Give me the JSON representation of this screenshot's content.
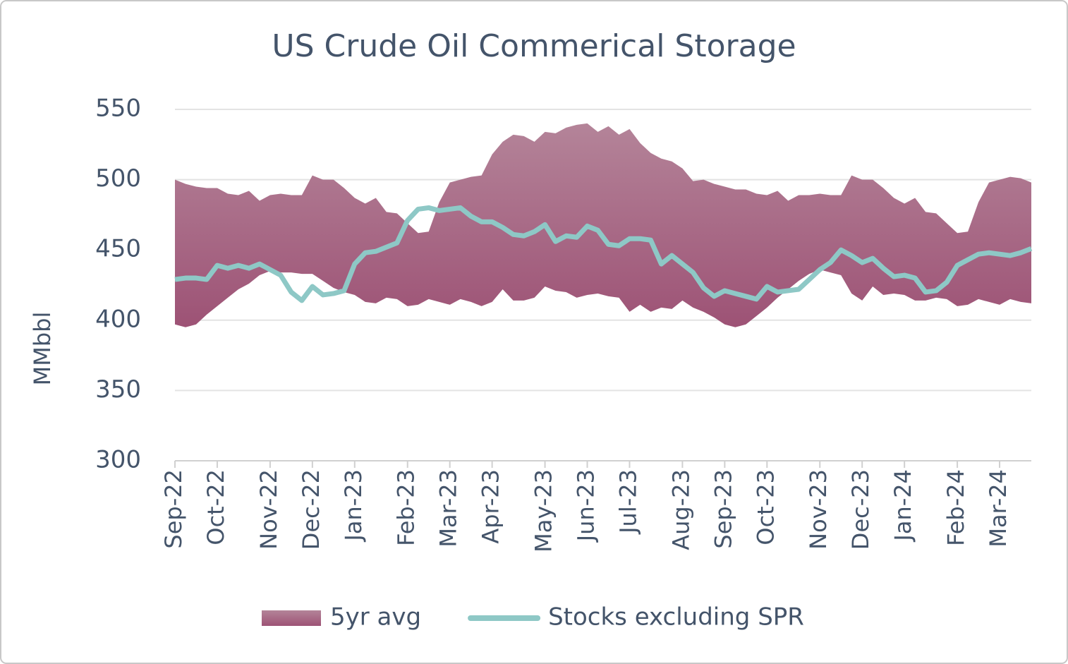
{
  "chart_data": {
    "type": "band_line",
    "title": "US Crude Oil Commerical Storage",
    "y_label": "MMbbl",
    "categories": [
      "Sep-22",
      null,
      null,
      null,
      "Oct-22",
      null,
      null,
      null,
      null,
      "Nov-22",
      null,
      null,
      null,
      "Dec-22",
      null,
      null,
      null,
      "Jan-23",
      null,
      null,
      null,
      null,
      "Feb-23",
      null,
      null,
      null,
      "Mar-23",
      null,
      null,
      null,
      "Apr-23",
      null,
      null,
      null,
      null,
      "May-23",
      null,
      null,
      null,
      "Jun-23",
      null,
      null,
      null,
      "Jul-23",
      null,
      null,
      null,
      null,
      "Aug-23",
      null,
      null,
      null,
      "Sep-23",
      null,
      null,
      null,
      "Oct-23",
      null,
      null,
      null,
      null,
      "Nov-23",
      null,
      null,
      null,
      "Dec-23",
      null,
      null,
      null,
      "Jan-24",
      null,
      null,
      null,
      null,
      "Feb-24",
      null,
      null,
      null,
      "Mar-24",
      null,
      null,
      null
    ],
    "series": [
      {
        "name": "5yr avg",
        "color": "#a3627f",
        "high": [
          500,
          497,
          495,
          494,
          494,
          490,
          489,
          492,
          485,
          489,
          490,
          489,
          489,
          503,
          500,
          500,
          494,
          487,
          483,
          487,
          477,
          476,
          469,
          462,
          463,
          484,
          498,
          500,
          502,
          503,
          518,
          527,
          532,
          531,
          527,
          534,
          533,
          537,
          539,
          540,
          534,
          538,
          532,
          536,
          526,
          519,
          515,
          513,
          508,
          499,
          500,
          497,
          495,
          493,
          493,
          490,
          489,
          492,
          485,
          489,
          489,
          490,
          489,
          489,
          503,
          500,
          500,
          494,
          487,
          483,
          487,
          477,
          476,
          469,
          462,
          463,
          484,
          498,
          500,
          502,
          501,
          498
        ],
        "low": [
          397,
          395,
          397,
          404,
          410,
          416,
          422,
          426,
          432,
          435,
          434,
          434,
          433,
          433,
          428,
          423,
          420,
          418,
          413,
          412,
          416,
          415,
          410,
          411,
          415,
          413,
          411,
          415,
          413,
          410,
          413,
          422,
          414,
          414,
          416,
          424,
          421,
          420,
          416,
          418,
          419,
          417,
          416,
          406,
          411,
          406,
          409,
          408,
          414,
          409,
          406,
          402,
          397,
          395,
          397,
          403,
          409,
          416,
          422,
          428,
          433,
          436,
          434,
          432,
          419,
          414,
          424,
          418,
          419,
          418,
          414,
          414,
          416,
          415,
          410,
          411,
          415,
          413,
          411,
          415,
          413,
          412
        ]
      },
      {
        "name": "Stocks excluding SPR",
        "color": "#8ec8c6",
        "values": [
          429,
          430,
          430,
          429,
          439,
          437,
          439,
          437,
          440,
          436,
          432,
          420,
          414,
          424,
          418,
          419,
          421,
          440,
          448,
          449,
          452,
          455,
          471,
          479,
          480,
          478,
          479,
          480,
          474,
          470,
          470,
          466,
          461,
          460,
          463,
          468,
          456,
          460,
          459,
          467,
          464,
          454,
          453,
          458,
          458,
          457,
          440,
          446,
          440,
          434,
          423,
          417,
          421,
          419,
          417,
          415,
          424,
          420,
          421,
          422,
          429,
          436,
          441,
          450,
          446,
          441,
          444,
          437,
          431,
          432,
          430,
          420,
          421,
          427,
          439,
          443,
          447,
          448,
          447,
          446,
          448,
          451
        ]
      }
    ],
    "ylim": [
      300,
      550
    ],
    "yticks": [
      300,
      350,
      400,
      450,
      500,
      550
    ],
    "grid": true,
    "legend": "bottom"
  }
}
